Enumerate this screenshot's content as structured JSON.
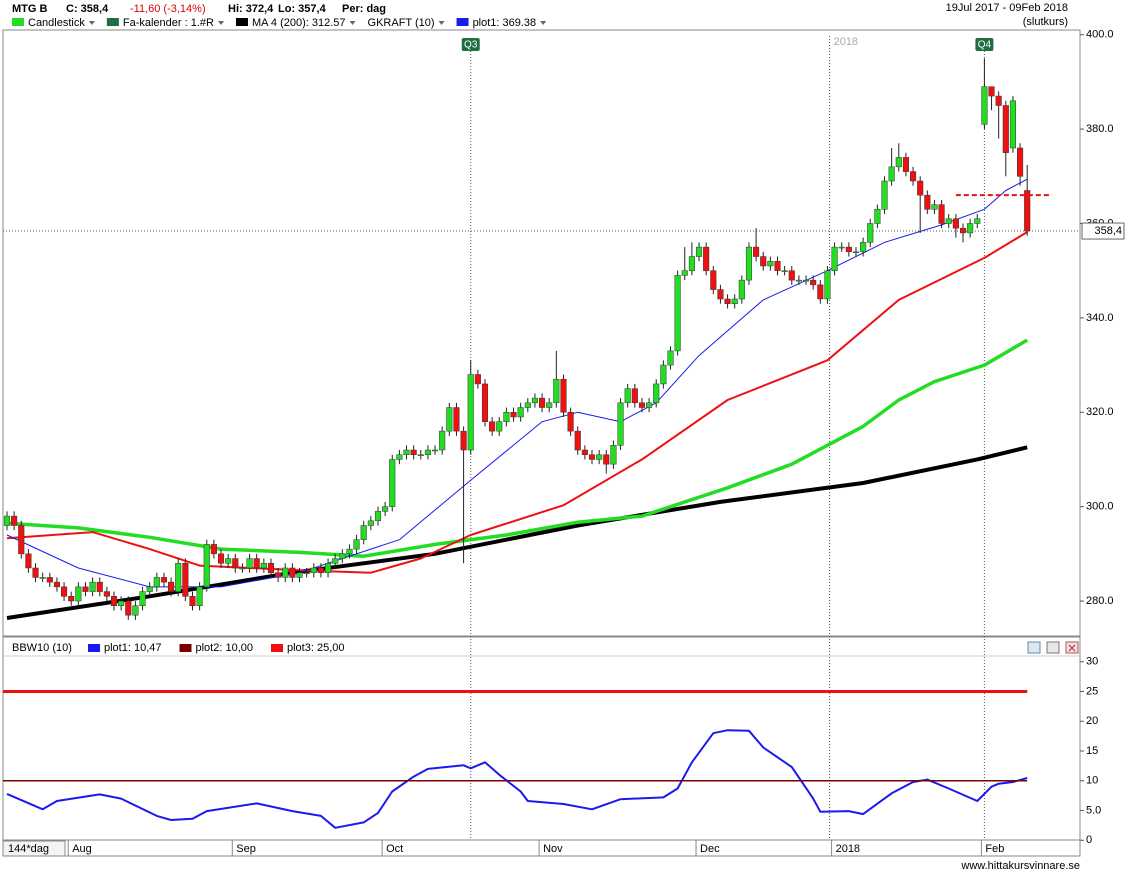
{
  "header": {
    "symbol": "MTG B",
    "close": "C: 358,4",
    "change": "-11,60 (-3,14%)",
    "high": "Hi: 372,4",
    "low": "Lo: 357,4",
    "period": "Per: dag",
    "range": "19Jul 2017 - 09Feb 2018",
    "mode": "(slutkurs)"
  },
  "x_axis_span": "144*dag",
  "watermark": "www.hittakursvinnare.se",
  "chart_data": [
    {
      "type": "candlestick",
      "legend_items": [
        {
          "label": "Candlestick",
          "color": "#22dd22"
        },
        {
          "label": "Fa-kalender : 1.#R",
          "color": "#1f6e3f"
        },
        {
          "label": "GKRAFT (10)"
        }
      ],
      "up_color": "#22dd22",
      "down_color": "#ee1111",
      "open": [
        296,
        298,
        296,
        290,
        287,
        285,
        285,
        284,
        283,
        281,
        280,
        283,
        282,
        284,
        282,
        281,
        279,
        280,
        277,
        279,
        282,
        283,
        285,
        284,
        282,
        288,
        281,
        279,
        283,
        292,
        290,
        288,
        289,
        287,
        287,
        289,
        287,
        288,
        286,
        285,
        287,
        285,
        286,
        286,
        287,
        286,
        288,
        289,
        290,
        291,
        293,
        296,
        297,
        299,
        300,
        310,
        311,
        312,
        311,
        311,
        312,
        312,
        316,
        321,
        316,
        312,
        328,
        326,
        318,
        316,
        318,
        320,
        319,
        321,
        322,
        323,
        321,
        322,
        327,
        320,
        316,
        312,
        311,
        310,
        311,
        309,
        313,
        322,
        325,
        322,
        321,
        322,
        326,
        330,
        333,
        349,
        350,
        353,
        355,
        350,
        346,
        344,
        343,
        344,
        348,
        355,
        353,
        351,
        352,
        350,
        350,
        348,
        348,
        348,
        347,
        344,
        350,
        355,
        355,
        354,
        354,
        356,
        360,
        363,
        369,
        372,
        374,
        371,
        369,
        366,
        363,
        364,
        360,
        361,
        359,
        358,
        360,
        381,
        389,
        387,
        385,
        376,
        376,
        367
      ],
      "high": [
        299,
        299,
        297,
        291,
        288,
        286,
        286,
        285,
        284,
        282,
        284,
        284,
        285,
        285,
        283,
        282,
        281,
        281,
        280,
        283,
        284,
        286,
        286,
        285,
        289,
        289,
        282,
        284,
        293,
        293,
        291,
        290,
        290,
        288,
        290,
        290,
        289,
        289,
        287,
        288,
        288,
        287,
        287,
        288,
        288,
        289,
        290,
        291,
        292,
        294,
        297,
        298,
        300,
        301,
        311,
        312,
        313,
        313,
        312,
        313,
        313,
        317,
        322,
        322,
        317,
        331,
        329,
        327,
        319,
        319,
        321,
        321,
        322,
        323,
        324,
        324,
        323,
        333,
        328,
        321,
        317,
        313,
        312,
        312,
        312,
        314,
        323,
        326,
        326,
        323,
        323,
        327,
        331,
        334,
        350,
        355,
        356,
        356,
        356,
        351,
        347,
        345,
        345,
        349,
        356,
        359,
        354,
        353,
        353,
        351,
        351,
        349,
        349,
        349,
        348,
        351,
        356,
        356,
        356,
        355,
        357,
        361,
        364,
        370,
        376,
        377,
        375,
        372,
        370,
        367,
        365,
        365,
        362,
        362,
        360,
        361,
        362,
        395,
        389,
        388,
        386,
        387,
        377,
        372.4
      ],
      "low": [
        295,
        295,
        289,
        286,
        284,
        284,
        283,
        282,
        280,
        279,
        279,
        281,
        281,
        281,
        280,
        278,
        278,
        276,
        276,
        278,
        281,
        282,
        283,
        281,
        281,
        280,
        278,
        278,
        282,
        289,
        287,
        287,
        286,
        286,
        286,
        286,
        286,
        285,
        284,
        284,
        284,
        284,
        285,
        285,
        285,
        285,
        287,
        288,
        289,
        290,
        292,
        295,
        296,
        298,
        299,
        309,
        310,
        310,
        310,
        310,
        311,
        311,
        315,
        315,
        288,
        311,
        325,
        317,
        315,
        315,
        317,
        318,
        318,
        320,
        321,
        320,
        320,
        321,
        319,
        315,
        311,
        310,
        309,
        309,
        307,
        308,
        312,
        321,
        321,
        320,
        320,
        321,
        325,
        329,
        332,
        348,
        349,
        352,
        349,
        345,
        343,
        342,
        342,
        343,
        347,
        352,
        350,
        350,
        349,
        349,
        347,
        347,
        347,
        346,
        343,
        343,
        349,
        354,
        353,
        353,
        353,
        355,
        359,
        362,
        368,
        371,
        370,
        368,
        358,
        362,
        362,
        359,
        359,
        357,
        356,
        357,
        359,
        380,
        384,
        378,
        370,
        375,
        368,
        357.4
      ],
      "close": [
        298,
        296,
        290,
        287,
        285,
        285,
        284,
        283,
        281,
        280,
        283,
        282,
        284,
        282,
        281,
        279,
        280,
        277,
        279,
        282,
        283,
        285,
        284,
        282,
        288,
        281,
        279,
        283,
        292,
        290,
        288,
        289,
        287,
        287,
        289,
        287,
        288,
        286,
        285,
        287,
        285,
        286,
        286,
        287,
        286,
        288,
        289,
        290,
        291,
        293,
        296,
        297,
        299,
        300,
        310,
        311,
        312,
        311,
        311,
        312,
        312,
        316,
        321,
        316,
        312,
        328,
        326,
        318,
        316,
        318,
        320,
        319,
        321,
        322,
        323,
        321,
        322,
        327,
        320,
        316,
        312,
        311,
        310,
        311,
        309,
        313,
        322,
        325,
        322,
        321,
        322,
        326,
        330,
        333,
        349,
        350,
        353,
        355,
        350,
        346,
        344,
        343,
        344,
        348,
        355,
        353,
        351,
        352,
        350,
        350,
        348,
        348,
        348,
        347,
        344,
        350,
        355,
        355,
        354,
        354,
        356,
        360,
        363,
        369,
        372,
        374,
        371,
        369,
        366,
        363,
        364,
        360,
        361,
        359,
        358,
        360,
        361,
        389,
        387,
        385,
        375,
        386,
        370,
        358.4
      ],
      "series": [
        {
          "name": "MA 4 (200): 312.57",
          "color": "#000000",
          "width": 4,
          "x": [
            0,
            20,
            40,
            60,
            80,
            100,
            120,
            136,
            143
          ],
          "values": [
            276.4,
            281,
            286,
            290,
            296,
            301,
            305,
            310,
            312.57
          ]
        },
        {
          "color": "#22dd22",
          "width": 3.5,
          "x": [
            0,
            10,
            20,
            30,
            41,
            50,
            60,
            70,
            80,
            89,
            101,
            110,
            115,
            120,
            125,
            130,
            137,
            143
          ],
          "values": [
            296.5,
            295.5,
            293.5,
            291,
            290.3,
            289.5,
            292,
            294,
            296.7,
            298,
            304,
            309,
            313,
            317,
            322.6,
            326.5,
            330,
            335.3
          ]
        },
        {
          "color": "#ee1111",
          "width": 2,
          "x": [
            0,
            12,
            20,
            27,
            41,
            51,
            58,
            65,
            78,
            89,
            101,
            115,
            125,
            137,
            143
          ],
          "values": [
            293.3,
            294.6,
            291,
            287.5,
            286.5,
            286,
            289,
            294,
            300.3,
            310,
            322.6,
            331,
            343.8,
            352.7,
            358.2
          ]
        },
        {
          "name": "plot1: 369.38",
          "color": "#1a1aee",
          "width": 1,
          "x": [
            0,
            10,
            20,
            30,
            41,
            55,
            65,
            75,
            80,
            86,
            91,
            97,
            106,
            115,
            123,
            131,
            137,
            140,
            143
          ],
          "values": [
            294,
            287,
            283,
            283,
            286,
            293,
            305.6,
            318,
            320,
            318,
            322,
            332,
            343.8,
            350,
            356,
            359.7,
            363,
            367,
            369.38
          ]
        }
      ],
      "events": [
        {
          "label": "Q3",
          "x": 65
        },
        {
          "label": "Q4",
          "x": 137
        }
      ],
      "year_marker": {
        "label": "2018",
        "x": 115.3
      },
      "alert_level": 366,
      "last_price": 358.4,
      "last_price_label": "358,4",
      "xlim": [
        -0.56,
        150.4
      ],
      "ylim": [
        272.8,
        401
      ],
      "yticks": [
        {
          "value": 280,
          "label": "280.0"
        },
        {
          "value": 300,
          "label": "300.0"
        },
        {
          "value": 320,
          "label": "320.0"
        },
        {
          "value": 340,
          "label": "340.0"
        },
        {
          "value": 360,
          "label": "360.0"
        },
        {
          "value": 380,
          "label": "380.0"
        },
        {
          "value": 400,
          "label": "400.0"
        }
      ]
    },
    {
      "type": "line",
      "title": "BBW10 (10)",
      "series": [
        {
          "name": "plot1: 10,47",
          "color": "#1a1aee",
          "width": 2,
          "x": [
            0,
            5,
            7,
            13,
            16,
            21,
            23,
            26,
            28,
            35,
            40,
            44,
            46,
            50,
            52,
            54,
            57,
            59,
            64,
            65,
            67,
            69,
            72,
            73,
            78,
            82,
            86,
            92,
            94,
            96,
            99,
            101,
            104,
            106,
            110,
            113,
            114,
            118,
            120,
            124,
            127,
            129,
            132,
            136,
            138,
            139,
            141,
            143
          ],
          "values": [
            7.8,
            5.2,
            6.6,
            7.7,
            7,
            4.1,
            3.4,
            3.6,
            4.9,
            6.2,
            4.9,
            4.1,
            2.1,
            3,
            4.6,
            8.2,
            10.7,
            12,
            12.6,
            12.1,
            13.1,
            11,
            8.2,
            6.6,
            6.1,
            5.2,
            6.9,
            7.2,
            8.7,
            13.1,
            18,
            18.5,
            18.4,
            15.6,
            12.3,
            7,
            4.8,
            4.9,
            4.4,
            7.9,
            9.8,
            10.2,
            8.7,
            6.6,
            9,
            9.5,
            9.8,
            10.47
          ]
        },
        {
          "name": "plot2: 10,00",
          "color": "#7a0000",
          "width": 1.5,
          "level": 10
        },
        {
          "name": "plot3: 25,00",
          "color": "#ee1111",
          "width": 3,
          "level": 25
        }
      ],
      "xlim": [
        -0.56,
        150.4
      ],
      "ylim": [
        -1.3,
        30.8
      ],
      "yticks": [
        0,
        {
          "value": 5,
          "label": "5.0"
        },
        10,
        15,
        20,
        25,
        30
      ],
      "xticks": [
        {
          "value": 9,
          "label": "Aug"
        },
        {
          "value": 32,
          "label": "Sep"
        },
        {
          "value": 53,
          "label": "Oct"
        },
        {
          "value": 75,
          "label": "Nov"
        },
        {
          "value": 97,
          "label": "Dec"
        },
        {
          "value": 116,
          "label": "2018"
        },
        {
          "value": 137,
          "label": "Feb"
        }
      ]
    }
  ]
}
